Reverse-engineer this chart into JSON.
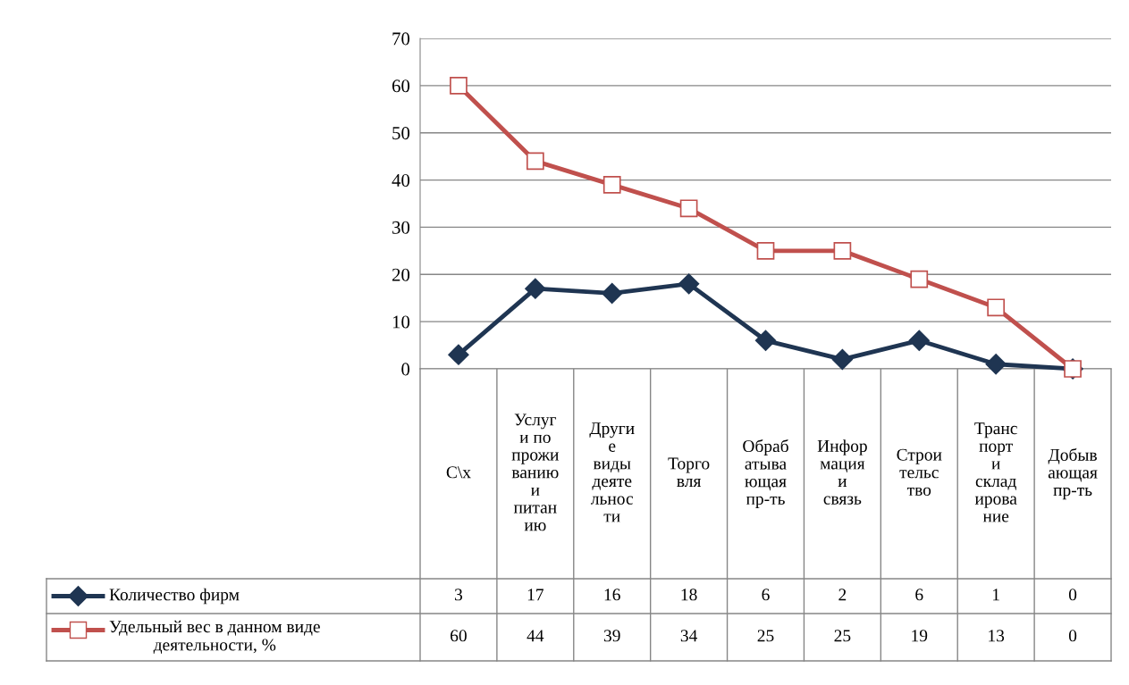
{
  "chart_data": {
    "type": "line",
    "categories": [
      "С\\х",
      "Услуги по проживанию и питанию",
      "Другие виды деятельности",
      "Торговля",
      "Обрабатывающая пр-ть",
      "Информация и связь",
      "Строительство",
      "Транспорт и складирование",
      "Добывающая пр-ть"
    ],
    "series": [
      {
        "name": "Количество фирм",
        "color": "#1f3552",
        "marker": "diamond",
        "values": [
          3,
          17,
          16,
          18,
          6,
          2,
          6,
          1,
          0
        ]
      },
      {
        "name": "Удельный вес в данном виде деятельности, %",
        "color": "#c0504d",
        "marker": "square",
        "values": [
          60,
          44,
          39,
          34,
          25,
          25,
          19,
          13,
          0
        ]
      }
    ],
    "ylim": [
      0,
      70
    ],
    "yticks": [
      0,
      10,
      20,
      30,
      40,
      50,
      60,
      70
    ],
    "grid": "y",
    "legend": "bottom",
    "data_labels": true
  }
}
